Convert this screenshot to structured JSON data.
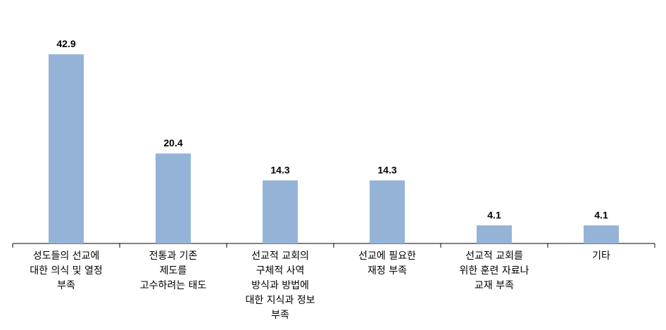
{
  "chart_data": {
    "type": "bar",
    "categories": [
      "성도들의 선교에\n대한 의식 및 열정\n부족",
      "전통과 기존\n제도를\n고수하려는 태도",
      "선교적 교회의\n구체적 사역\n방식과 방법에\n대한 지식과 정보\n부족",
      "선교에 필요한\n재정 부족",
      "선교적 교회를\n위한 훈련 자료나\n교재 부족",
      "기타"
    ],
    "values": [
      42.9,
      20.4,
      14.3,
      14.3,
      4.1,
      4.1
    ],
    "color": "#95b3d7",
    "ylim": [
      0,
      45
    ]
  }
}
